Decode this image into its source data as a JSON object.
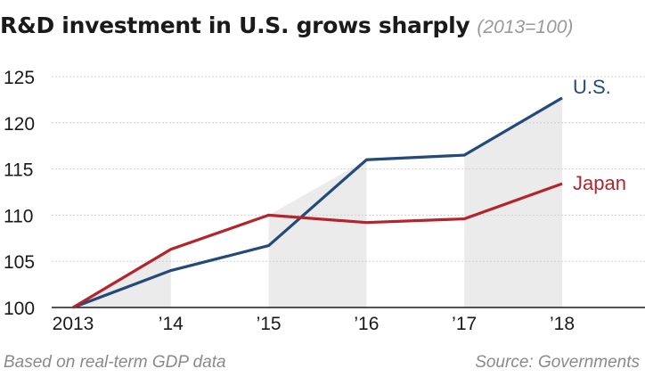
{
  "chart_data": {
    "type": "line",
    "title": "R&D investment in U.S. grows sharply",
    "subtitle": "(2013=100)",
    "categories": [
      "2013",
      "’14",
      "’15",
      "’16",
      "’17",
      "’18"
    ],
    "series": [
      {
        "name": "U.S.",
        "color": "#234a7a",
        "values": [
          100,
          104.0,
          106.7,
          116.0,
          116.5,
          122.7
        ]
      },
      {
        "name": "Japan",
        "color": "#b5242c",
        "values": [
          100,
          106.3,
          110.0,
          109.2,
          109.6,
          113.4
        ]
      }
    ],
    "y_ticks": [
      "100",
      "105",
      "110",
      "115",
      "120",
      "125"
    ],
    "ylim": [
      100,
      125
    ],
    "shaded_categories": [
      1,
      3,
      5
    ],
    "grid": true,
    "xlabel": "",
    "ylabel": ""
  },
  "footer": {
    "note": "Based on real-term GDP data",
    "source": "Source: Governments"
  }
}
